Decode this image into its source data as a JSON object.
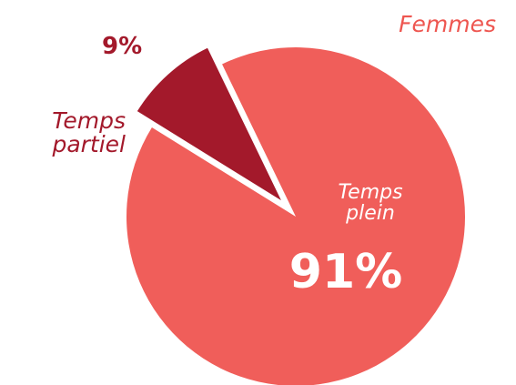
{
  "chart_data": {
    "type": "pie",
    "title": "Femmes",
    "categories": [
      "Temps plein",
      "Temps partiel"
    ],
    "values": [
      91,
      9
    ],
    "value_labels": [
      "91%",
      "9%"
    ],
    "colors": [
      "#f05e5a",
      "#a3192b"
    ]
  }
}
